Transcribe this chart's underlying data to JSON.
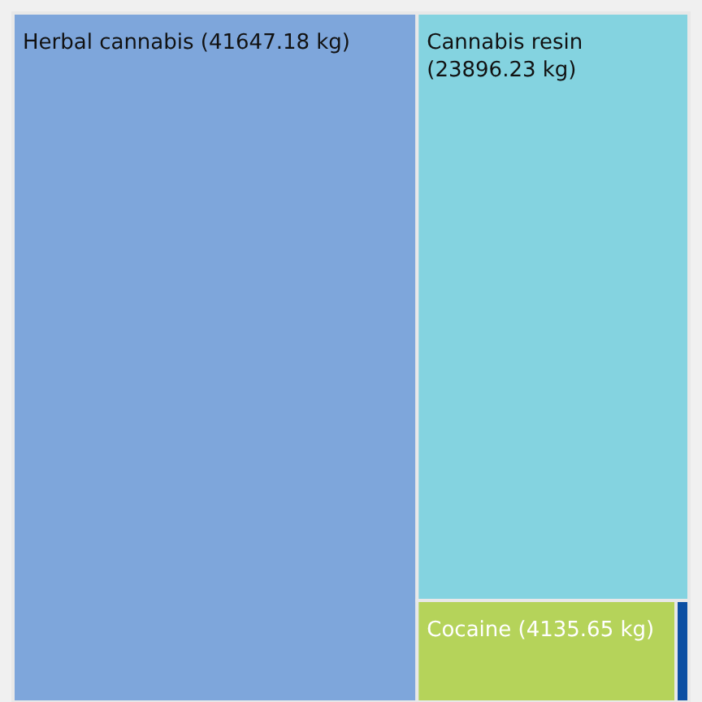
{
  "chart_data": {
    "type": "other",
    "categories": [
      "Herbal cannabis",
      "Cannabis resin",
      "Cocaine",
      null
    ],
    "values": [
      41647.18,
      23896.23,
      4135.65,
      null
    ],
    "value_labels": [
      "(41647.18 kg)",
      "(23896.23 kg)",
      "(4135.65 kg)",
      null
    ],
    "colors": [
      "#7ea6db",
      "#84d3e0",
      "#b5d35a",
      "#0b4fa3"
    ]
  }
}
